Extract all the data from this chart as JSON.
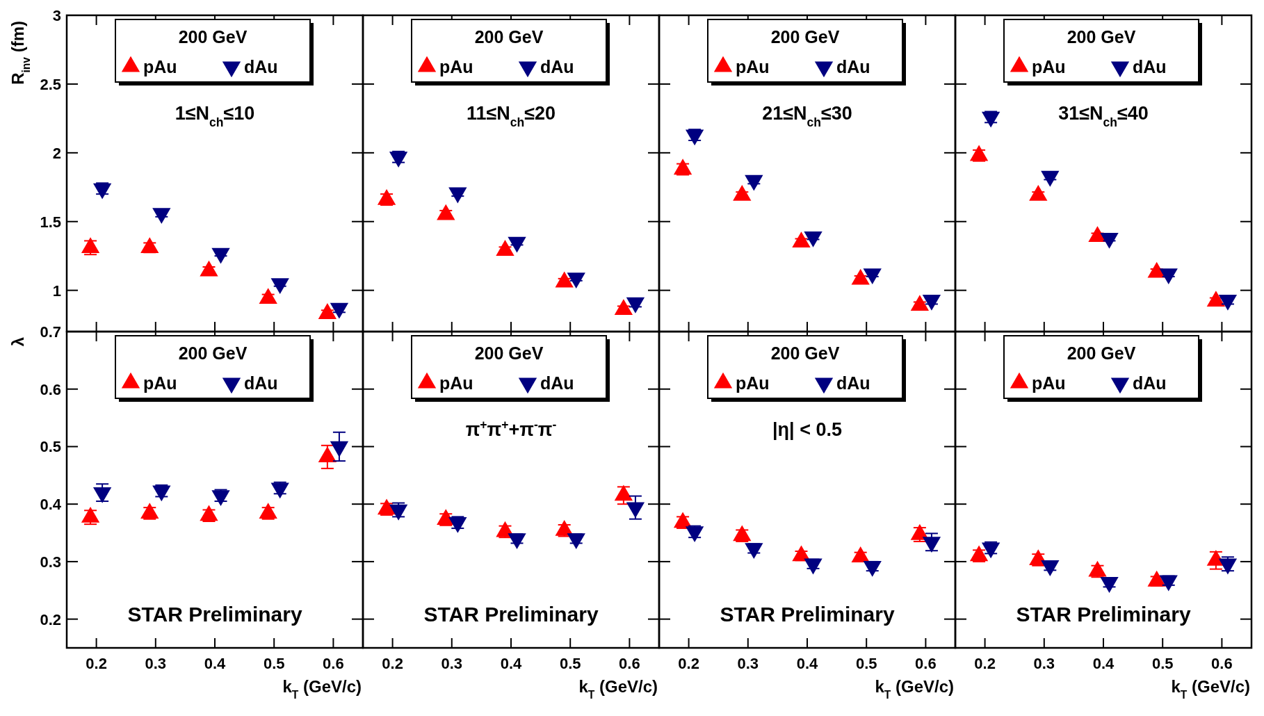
{
  "chart_data": [
    {
      "type": "scatter",
      "ylabel": "R$_{inv}$ (fm)",
      "xlim": [
        0.15,
        0.65
      ],
      "ylim": [
        0.7,
        3
      ],
      "xticks": [
        0.2,
        0.3,
        0.4,
        0.5,
        0.6
      ],
      "yticks": [
        1,
        1.5,
        2,
        2.5,
        3
      ],
      "tick_labels": "y",
      "legend": "top",
      "legend_title": "200 GeV",
      "grid": false,
      "annotations": [
        "1≤N$_{ch}$≤10"
      ],
      "series": [
        {
          "name": "pAu",
          "color": "#ff0000",
          "marker": "triangle",
          "x": [
            0.19,
            0.29,
            0.39,
            0.49,
            0.59
          ],
          "values": [
            1.31,
            1.31,
            1.14,
            0.94,
            0.83
          ],
          "errors": [
            0.05,
            0.035,
            0.03,
            0.03,
            0.025
          ]
        },
        {
          "name": "dAu",
          "color": "#000080",
          "marker": "triangle-down",
          "x": [
            0.21,
            0.31,
            0.41,
            0.51,
            0.61
          ],
          "values": [
            1.74,
            1.56,
            1.27,
            1.05,
            0.87
          ],
          "errors": [
            0.04,
            0.025,
            0.02,
            0.02,
            0.03
          ]
        }
      ]
    },
    {
      "type": "scatter",
      "xlim": [
        0.15,
        0.65
      ],
      "ylim": [
        0.7,
        3
      ],
      "xticks": [
        0.2,
        0.3,
        0.4,
        0.5,
        0.6
      ],
      "yticks": [
        1,
        1.5,
        2,
        2.5,
        3
      ],
      "tick_labels": false,
      "legend": "top",
      "legend_title": "200 GeV",
      "grid": false,
      "annotations": [
        "11≤N$_{ch}$≤20"
      ],
      "series": [
        {
          "name": "pAu",
          "color": "#ff0000",
          "marker": "triangle",
          "x": [
            0.19,
            0.29,
            0.39,
            0.49,
            0.59
          ],
          "values": [
            1.66,
            1.55,
            1.29,
            1.06,
            0.86
          ],
          "errors": [
            0.04,
            0.03,
            0.025,
            0.025,
            0.025
          ]
        },
        {
          "name": "dAu",
          "color": "#000080",
          "marker": "triangle-down",
          "x": [
            0.21,
            0.31,
            0.41,
            0.51,
            0.61
          ],
          "values": [
            1.97,
            1.71,
            1.35,
            1.09,
            0.91
          ],
          "errors": [
            0.04,
            0.025,
            0.02,
            0.02,
            0.03
          ]
        }
      ]
    },
    {
      "type": "scatter",
      "xlim": [
        0.15,
        0.65
      ],
      "ylim": [
        0.7,
        3
      ],
      "xticks": [
        0.2,
        0.3,
        0.4,
        0.5,
        0.6
      ],
      "yticks": [
        1,
        1.5,
        2,
        2.5,
        3
      ],
      "tick_labels": false,
      "legend": "top",
      "legend_title": "200 GeV",
      "grid": false,
      "annotations": [
        "21≤N$_{ch}$≤30"
      ],
      "series": [
        {
          "name": "pAu",
          "color": "#ff0000",
          "marker": "triangle",
          "x": [
            0.19,
            0.29,
            0.39,
            0.49,
            0.59
          ],
          "values": [
            1.88,
            1.69,
            1.35,
            1.08,
            0.89
          ],
          "errors": [
            0.04,
            0.025,
            0.025,
            0.025,
            0.025
          ]
        },
        {
          "name": "dAu",
          "color": "#000080",
          "marker": "triangle-down",
          "x": [
            0.21,
            0.31,
            0.41,
            0.51,
            0.61
          ],
          "values": [
            2.13,
            1.8,
            1.39,
            1.12,
            0.93
          ],
          "errors": [
            0.04,
            0.025,
            0.02,
            0.02,
            0.03
          ]
        }
      ]
    },
    {
      "type": "scatter",
      "xlim": [
        0.15,
        0.65
      ],
      "ylim": [
        0.7,
        3
      ],
      "xticks": [
        0.2,
        0.3,
        0.4,
        0.5,
        0.6
      ],
      "yticks": [
        1,
        1.5,
        2,
        2.5,
        3
      ],
      "tick_labels": false,
      "legend": "top",
      "legend_title": "200 GeV",
      "grid": false,
      "annotations": [
        "31≤N$_{ch}$≤40"
      ],
      "series": [
        {
          "name": "pAu",
          "color": "#ff0000",
          "marker": "triangle",
          "x": [
            0.19,
            0.29,
            0.39,
            0.49,
            0.59
          ],
          "values": [
            1.98,
            1.69,
            1.39,
            1.13,
            0.92
          ],
          "errors": [
            0.04,
            0.025,
            0.025,
            0.025,
            0.025
          ]
        },
        {
          "name": "dAu",
          "color": "#000080",
          "marker": "triangle-down",
          "x": [
            0.21,
            0.31,
            0.41,
            0.51,
            0.61
          ],
          "values": [
            2.26,
            1.83,
            1.38,
            1.12,
            0.93
          ],
          "errors": [
            0.04,
            0.025,
            0.02,
            0.02,
            0.03
          ]
        }
      ]
    },
    {
      "type": "scatter",
      "ylabel": "λ",
      "xlabel": "k$_{T}$ (GeV/c)",
      "xlim": [
        0.15,
        0.65
      ],
      "ylim": [
        0.15,
        0.7
      ],
      "xticks": [
        0.2,
        0.3,
        0.4,
        0.5,
        0.6
      ],
      "yticks": [
        0.2,
        0.3,
        0.4,
        0.5,
        0.6,
        0.7
      ],
      "legend": "top",
      "legend_title": "200 GeV",
      "grid": false,
      "annotations": [
        "STAR Preliminary"
      ],
      "series": [
        {
          "name": "pAu",
          "color": "#ff0000",
          "marker": "triangle",
          "x": [
            0.19,
            0.29,
            0.39,
            0.49,
            0.59
          ],
          "values": [
            0.377,
            0.384,
            0.38,
            0.384,
            0.482
          ],
          "errors": [
            0.012,
            0.01,
            0.01,
            0.01,
            0.02
          ]
        },
        {
          "name": "dAu",
          "color": "#000080",
          "marker": "triangle-down",
          "x": [
            0.21,
            0.31,
            0.41,
            0.51,
            0.61
          ],
          "values": [
            0.42,
            0.423,
            0.415,
            0.428,
            0.5
          ],
          "errors": [
            0.015,
            0.01,
            0.01,
            0.01,
            0.025
          ]
        }
      ]
    },
    {
      "type": "scatter",
      "xlabel": "k$_{T}$ (GeV/c)",
      "xlim": [
        0.15,
        0.65
      ],
      "ylim": [
        0.15,
        0.7
      ],
      "xticks": [
        0.2,
        0.3,
        0.4,
        0.5,
        0.6
      ],
      "yticks": [
        0.2,
        0.3,
        0.4,
        0.5,
        0.6,
        0.7
      ],
      "tick_labels": "x",
      "legend": "top",
      "legend_title": "200 GeV",
      "grid": false,
      "annotations": [
        "π$^{+}$π$^{+}$+π$^{-}$π$^{-}$",
        "STAR Preliminary"
      ],
      "series": [
        {
          "name": "pAu",
          "color": "#ff0000",
          "marker": "triangle",
          "x": [
            0.19,
            0.29,
            0.39,
            0.49,
            0.59
          ],
          "values": [
            0.391,
            0.373,
            0.352,
            0.354,
            0.415
          ],
          "errors": [
            0.01,
            0.01,
            0.01,
            0.01,
            0.015
          ]
        },
        {
          "name": "dAu",
          "color": "#000080",
          "marker": "triangle-down",
          "x": [
            0.21,
            0.31,
            0.41,
            0.51,
            0.61
          ],
          "values": [
            0.39,
            0.368,
            0.34,
            0.34,
            0.394
          ],
          "errors": [
            0.012,
            0.01,
            0.008,
            0.008,
            0.02
          ]
        }
      ]
    },
    {
      "type": "scatter",
      "xlabel": "k$_{T}$ (GeV/c)",
      "xlim": [
        0.15,
        0.65
      ],
      "ylim": [
        0.15,
        0.7
      ],
      "xticks": [
        0.2,
        0.3,
        0.4,
        0.5,
        0.6
      ],
      "yticks": [
        0.2,
        0.3,
        0.4,
        0.5,
        0.6,
        0.7
      ],
      "tick_labels": "x",
      "legend": "top",
      "legend_title": "200 GeV",
      "grid": false,
      "annotations": [
        "|η| < 0.5",
        "STAR Preliminary"
      ],
      "series": [
        {
          "name": "pAu",
          "color": "#ff0000",
          "marker": "triangle",
          "x": [
            0.19,
            0.29,
            0.39,
            0.49,
            0.59
          ],
          "values": [
            0.368,
            0.345,
            0.31,
            0.308,
            0.347
          ],
          "errors": [
            0.01,
            0.01,
            0.008,
            0.008,
            0.012
          ]
        },
        {
          "name": "dAu",
          "color": "#000080",
          "marker": "triangle-down",
          "x": [
            0.21,
            0.31,
            0.41,
            0.51,
            0.61
          ],
          "values": [
            0.352,
            0.323,
            0.296,
            0.292,
            0.334
          ],
          "errors": [
            0.01,
            0.008,
            0.008,
            0.008,
            0.015
          ]
        }
      ]
    },
    {
      "type": "scatter",
      "xlabel": "k$_{T}$ (GeV/c)",
      "xlim": [
        0.15,
        0.65
      ],
      "ylim": [
        0.15,
        0.7
      ],
      "xticks": [
        0.2,
        0.3,
        0.4,
        0.5,
        0.6
      ],
      "yticks": [
        0.2,
        0.3,
        0.4,
        0.5,
        0.6,
        0.7
      ],
      "tick_labels": "x",
      "legend": "top",
      "legend_title": "200 GeV",
      "grid": false,
      "annotations": [
        "STAR Preliminary"
      ],
      "series": [
        {
          "name": "pAu",
          "color": "#ff0000",
          "marker": "triangle",
          "x": [
            0.19,
            0.29,
            0.39,
            0.49,
            0.59
          ],
          "values": [
            0.31,
            0.303,
            0.283,
            0.266,
            0.302
          ],
          "errors": [
            0.01,
            0.01,
            0.01,
            0.008,
            0.015
          ]
        },
        {
          "name": "dAu",
          "color": "#000080",
          "marker": "triangle-down",
          "x": [
            0.21,
            0.31,
            0.41,
            0.51,
            0.61
          ],
          "values": [
            0.324,
            0.293,
            0.264,
            0.267,
            0.296
          ],
          "errors": [
            0.01,
            0.008,
            0.008,
            0.008,
            0.012
          ]
        }
      ]
    }
  ]
}
